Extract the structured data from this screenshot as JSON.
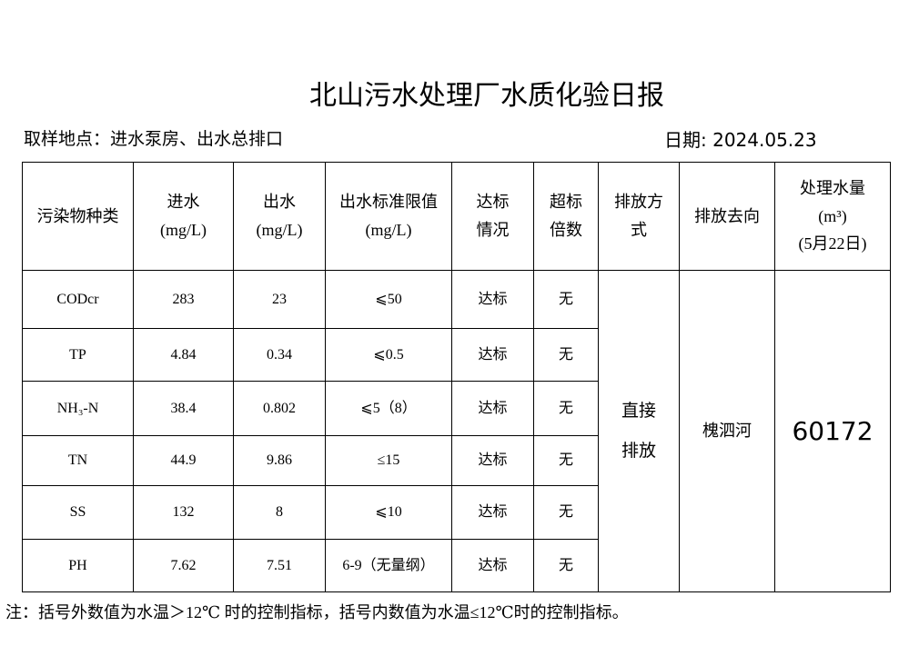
{
  "header": {
    "title": "北山污水处理厂水质化验日报",
    "location": "取样地点：进水泵房、出水总排口",
    "date": "日期: 2024.05.23"
  },
  "table": {
    "columns": [
      [
        "污染物种类"
      ],
      [
        "进水",
        "(mg/L)"
      ],
      [
        "出水",
        "(mg/L)"
      ],
      [
        "出水标准限值",
        "(mg/L)"
      ],
      [
        "达标",
        "情况"
      ],
      [
        "超标",
        "倍数"
      ],
      [
        "排放方",
        "式"
      ],
      [
        "排放去向"
      ],
      [
        "处理水量",
        "(m³)",
        "(5月22日)"
      ]
    ],
    "rows": [
      [
        "CODcr",
        "283",
        "23",
        "⩽50",
        "达标",
        "无"
      ],
      [
        "TP",
        "4.84",
        "0.34",
        "⩽0.5",
        "达标",
        "无"
      ],
      [
        "NH₃-N",
        "38.4",
        "0.802",
        "⩽5（8）",
        "达标",
        "无"
      ],
      [
        "TN",
        "44.9",
        "9.86",
        "≤15",
        "达标",
        "无"
      ],
      [
        "SS",
        "132",
        "8",
        "⩽10",
        "达标",
        "无"
      ],
      [
        "PH",
        "7.62",
        "7.51",
        "6-9（无量纲）",
        "达标",
        "无"
      ]
    ],
    "discharge_method": [
      "直接",
      "排放"
    ],
    "discharge_to": "槐泗河",
    "volume": "60172"
  },
  "footnote": "注：括号外数值为水温＞12℃ 时的控制指标，括号内数值为水温≤12℃时的控制指标。"
}
